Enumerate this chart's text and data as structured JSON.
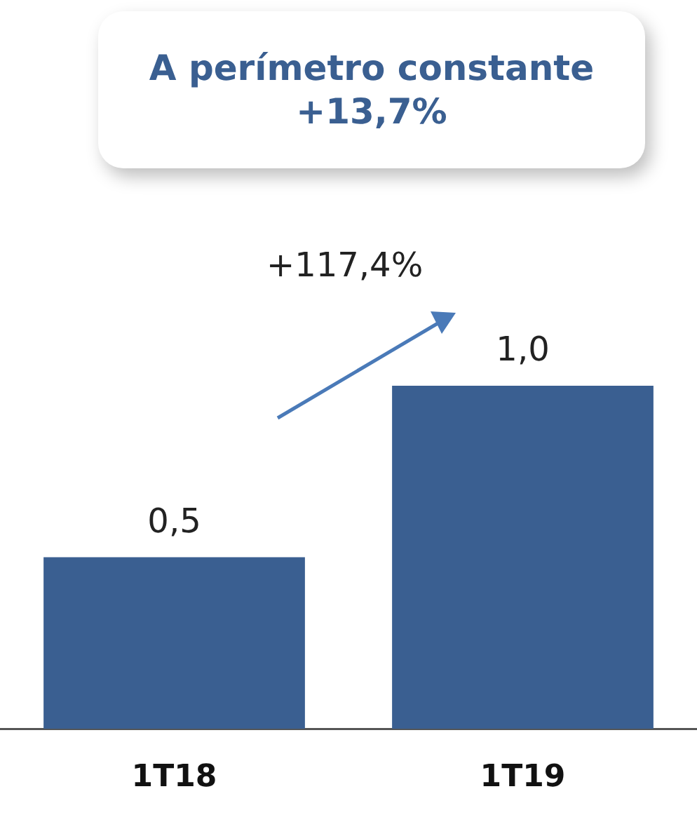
{
  "chart_data": {
    "type": "bar",
    "categories": [
      "1T18",
      "1T19"
    ],
    "values": [
      0.5,
      1.0
    ],
    "value_labels": [
      "0,5",
      "1,0"
    ],
    "color": "#3a5f91",
    "grid": false,
    "legend": false,
    "tick_labels": "x",
    "annotations": [
      "A perímetro constante\n+13,7%",
      "+117,4%"
    ]
  }
}
